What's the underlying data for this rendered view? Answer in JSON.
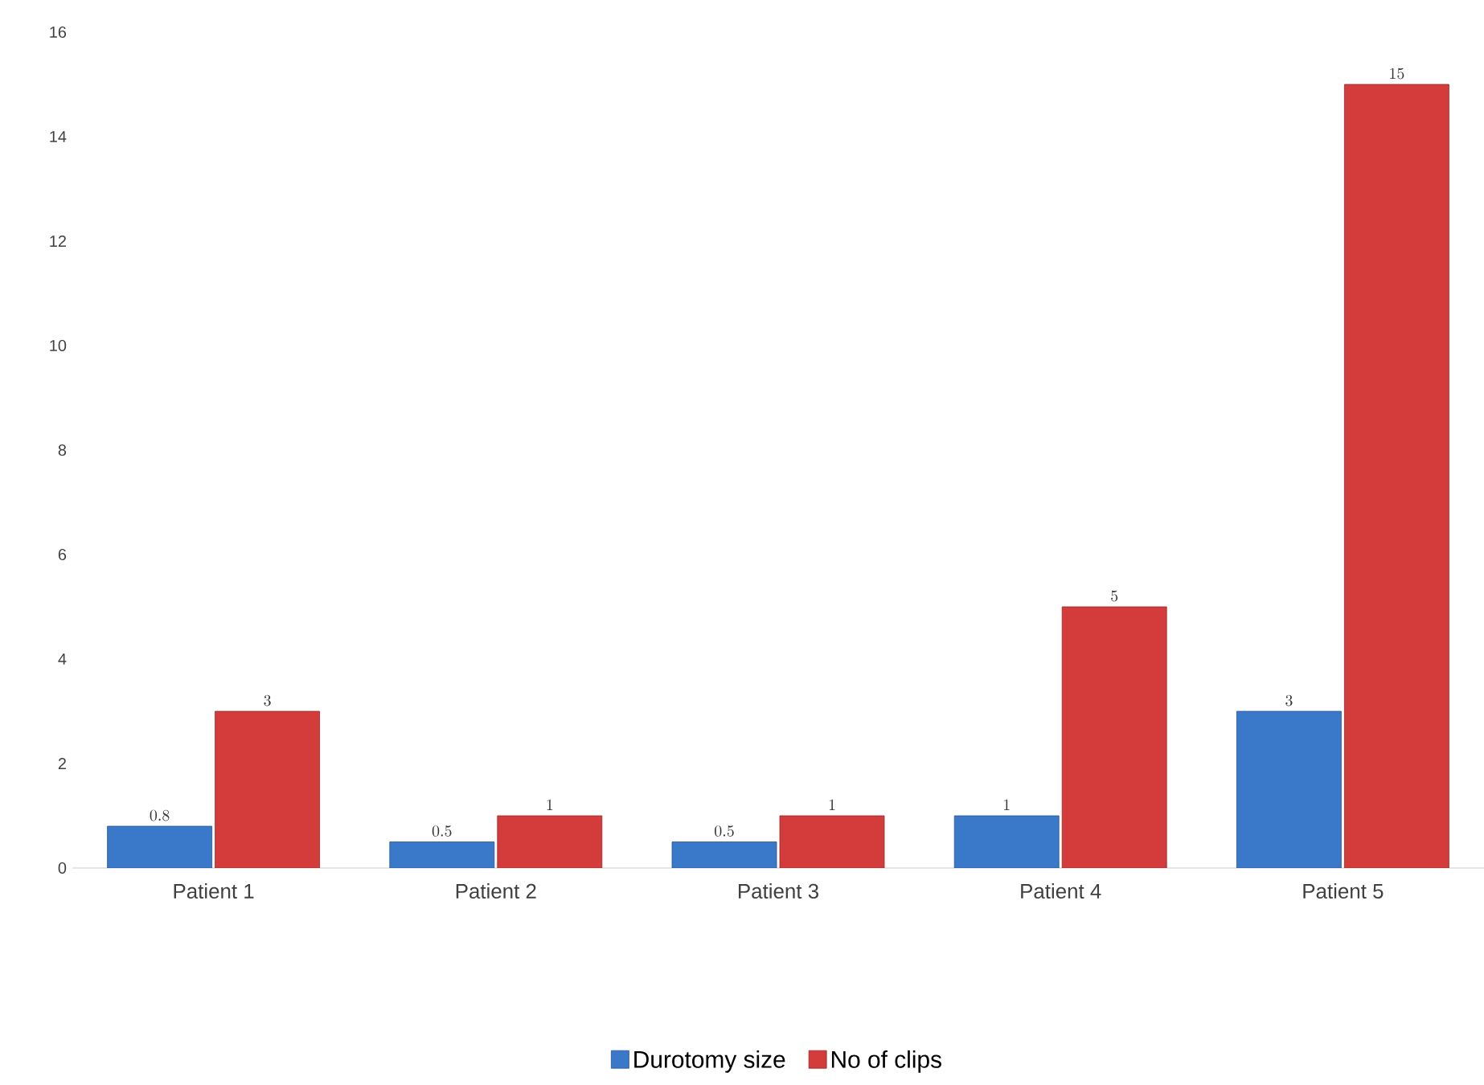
{
  "chart_data": {
    "type": "bar",
    "categories": [
      "Patient 1",
      "Patient 2",
      "Patient 3",
      "Patient 4",
      "Patient 5"
    ],
    "series": [
      {
        "name": "Durotomy size",
        "color": "#3a78c9",
        "values": [
          0.8,
          0.5,
          0.5,
          1,
          3
        ]
      },
      {
        "name": "No of clips",
        "color": "#d43b3b",
        "values": [
          3,
          1,
          1,
          5,
          15
        ]
      }
    ],
    "ylim": [
      0,
      16
    ],
    "yticks": [
      0,
      2,
      4,
      6,
      8,
      10,
      12,
      14,
      16
    ],
    "grid": false,
    "legend": "bottom",
    "data_labels": true
  }
}
